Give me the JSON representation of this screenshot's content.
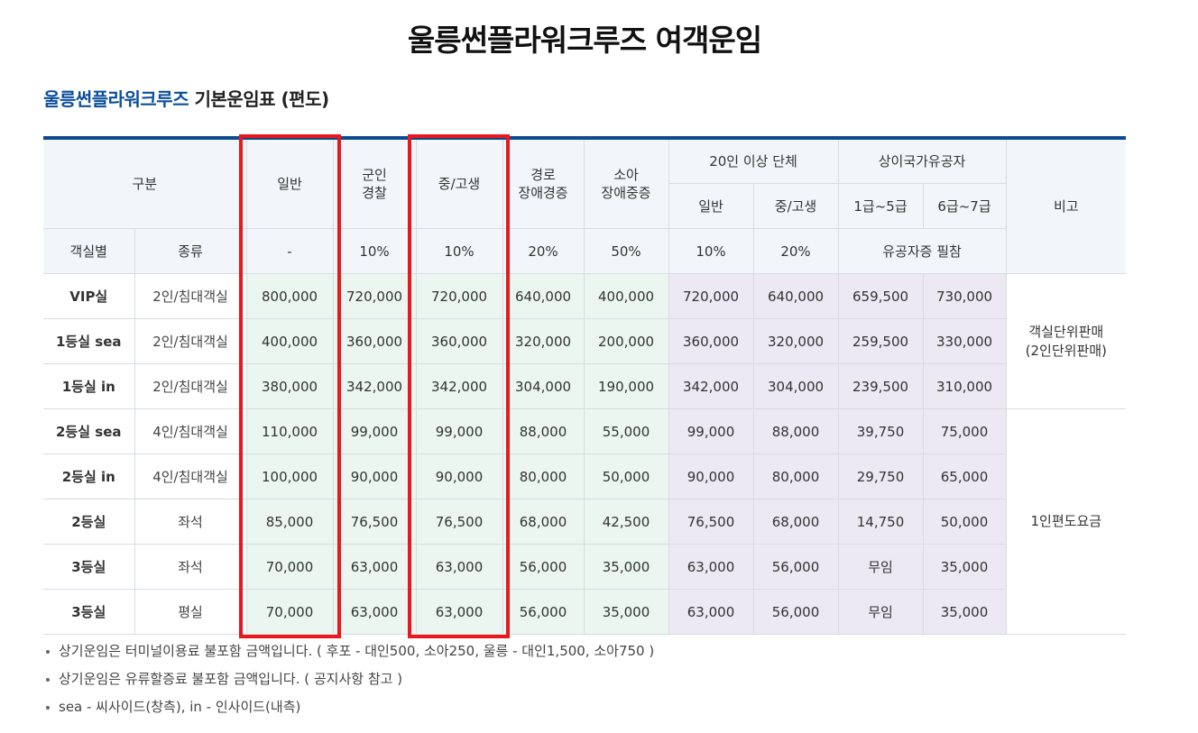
{
  "page_title": "울릉썬플라워크루즈 여객운임",
  "section": {
    "brand": "울릉썬플라워크루즈",
    "title": " 기본운임표 (편도)"
  },
  "table": {
    "header": {
      "gubun": "구분",
      "general": "일반",
      "military_1": "군인",
      "military_2": "경찰",
      "student": "중/고생",
      "senior_1": "경로",
      "senior_2": "장애경증",
      "child_1": "소아",
      "child_2": "장애중증",
      "group": "20인 이상 단체",
      "veteran": "상이국가유공자",
      "note": "비고",
      "group_general": "일반",
      "group_student": "중/고생",
      "veteran_1_5": "1급~5급",
      "veteran_6_7": "6급~7급",
      "room": "객실별",
      "kind": "종류",
      "disc_general": "-",
      "disc_military": "10%",
      "disc_student": "10%",
      "disc_senior": "20%",
      "disc_child": "50%",
      "disc_group_general": "10%",
      "disc_group_student": "20%",
      "disc_veteran": "유공자증 필참"
    },
    "rows": [
      {
        "label": "VIP실",
        "kind": "2인/침대객실",
        "values": [
          "800,000",
          "720,000",
          "720,000",
          "640,000",
          "400,000",
          "720,000",
          "640,000",
          "659,500",
          "730,000"
        ]
      },
      {
        "label": "1등실 sea",
        "kind": "2인/침대객실",
        "values": [
          "400,000",
          "360,000",
          "360,000",
          "320,000",
          "200,000",
          "360,000",
          "320,000",
          "259,500",
          "330,000"
        ]
      },
      {
        "label": "1등실 in",
        "kind": "2인/침대객실",
        "values": [
          "380,000",
          "342,000",
          "342,000",
          "304,000",
          "190,000",
          "342,000",
          "304,000",
          "239,500",
          "310,000"
        ]
      },
      {
        "label": "2등실 sea",
        "kind": "4인/침대객실",
        "values": [
          "110,000",
          "99,000",
          "99,000",
          "88,000",
          "55,000",
          "99,000",
          "88,000",
          "39,750",
          "75,000"
        ]
      },
      {
        "label": "2등실 in",
        "kind": "4인/침대객실",
        "values": [
          "100,000",
          "90,000",
          "90,000",
          "80,000",
          "50,000",
          "90,000",
          "80,000",
          "29,750",
          "65,000"
        ]
      },
      {
        "label": "2등실",
        "kind": "좌석",
        "values": [
          "85,000",
          "76,500",
          "76,500",
          "68,000",
          "42,500",
          "76,500",
          "68,000",
          "14,750",
          "50,000"
        ]
      },
      {
        "label": "3등실",
        "kind": "좌석",
        "values": [
          "70,000",
          "63,000",
          "63,000",
          "56,000",
          "35,000",
          "63,000",
          "56,000",
          "무임",
          "35,000"
        ]
      },
      {
        "label": "3등실",
        "kind": "평실",
        "values": [
          "70,000",
          "63,000",
          "63,000",
          "56,000",
          "35,000",
          "63,000",
          "56,000",
          "무임",
          "35,000"
        ]
      }
    ],
    "note_cabin_1": "객실단위판매",
    "note_cabin_2": "(2인단위판매)",
    "note_person": "1인편도요금"
  },
  "notes": [
    "상기운임은 터미널이용료 불포함 금액입니다. ( 후포 - 대인500, 소아250, 울릉 - 대인1,500, 소아750 )",
    "상기운임은 유류할증료 불포함 금액입니다. ( 공지사항 참고 )",
    "sea - 씨사이드(창측), in - 인사이드(내측)"
  ],
  "colors": {
    "brand_blue": "#0b4f9c",
    "table_top_border": "#0b4a8f",
    "header_bg": "#f2f6fa",
    "green_cell_bg": "#eaf6ef",
    "purple_cell_bg": "#ece8f4",
    "highlight_red": "#e8181c"
  }
}
